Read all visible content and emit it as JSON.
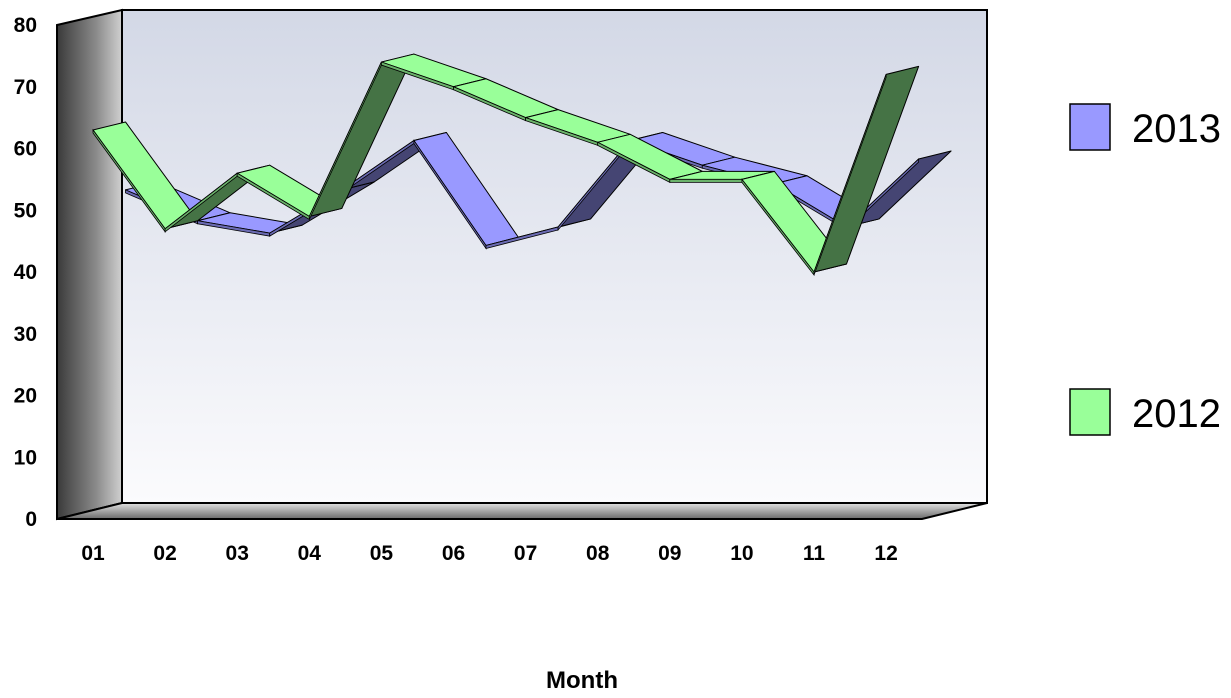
{
  "chart_data": {
    "type": "line",
    "style": "3d-ribbon",
    "title": "",
    "xlabel": "Month",
    "ylabel": "",
    "ylim": [
      0,
      80
    ],
    "yticks": [
      "0",
      "10",
      "20",
      "30",
      "40",
      "50",
      "60",
      "70",
      "80"
    ],
    "categories": [
      "01",
      "02",
      "03",
      "04",
      "05",
      "06",
      "07",
      "08",
      "09",
      "10",
      "11",
      "12"
    ],
    "series": [
      {
        "name": "2013",
        "color": "#9999ff",
        "values": [
          52,
          47,
          45,
          52,
          60,
          43,
          46,
          60,
          56,
          53,
          46,
          57
        ]
      },
      {
        "name": "2012",
        "color": "#99ff99",
        "values": [
          63,
          47,
          56,
          49,
          74,
          70,
          65,
          61,
          55,
          55,
          40,
          72
        ]
      }
    ],
    "legend_position": "right",
    "grid": false
  }
}
